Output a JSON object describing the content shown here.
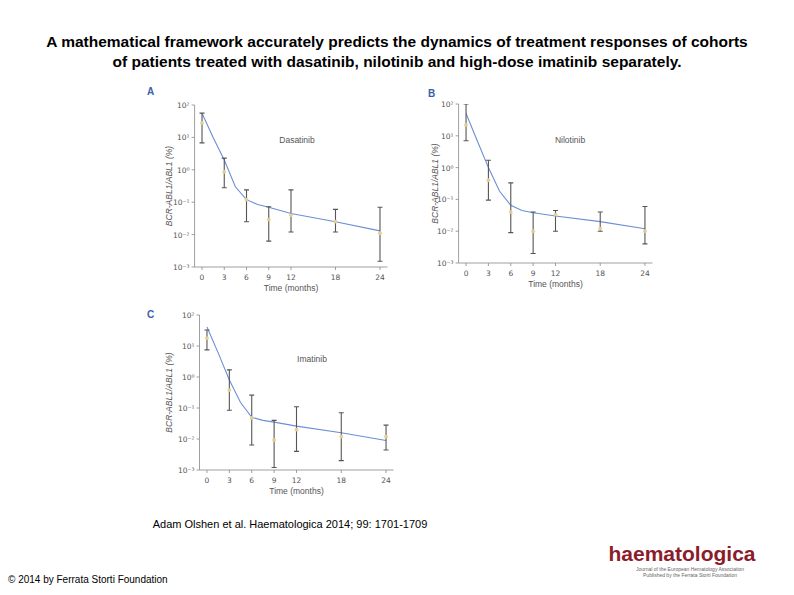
{
  "page": {
    "title": [
      "A mathematical framework accurately predicts the dynamics of treatment responses of cohorts",
      "of patients treated with dasatinib, nilotinib and high-dose imatinib separately."
    ],
    "citation": "Adam Olshen et al. Haematologica 2014; 99: 1701-1709",
    "copyright": "© 2014 by Ferrata Storti Foundation",
    "logo": {
      "name": "haematologica",
      "tagline": [
        "Journal of the European Hematology Association",
        "Published by the Ferrata Storti Foundation"
      ]
    }
  },
  "chart_data": [
    {
      "type": "scatter",
      "title": "A",
      "annotation": "Dasatinib",
      "x_label": "Time (months)",
      "y_label": "BCR-ABL1/ABL1 (%)",
      "log": "y",
      "grid": false,
      "xlim": [
        -1,
        25
      ],
      "xticks": [
        0,
        3,
        6,
        9,
        12,
        18,
        24
      ],
      "ylim": [
        0.001,
        100
      ],
      "yticks": [
        {
          "value": 100,
          "label": "10²"
        },
        {
          "value": 10,
          "label": "10¹"
        },
        {
          "value": 1,
          "label": "10⁰"
        },
        {
          "value": 0.1,
          "label": "10⁻¹"
        },
        {
          "value": 0.01,
          "label": "10⁻²"
        },
        {
          "value": 0.001,
          "label": "10⁻³"
        }
      ],
      "x": [
        0,
        3,
        6,
        9,
        12,
        18,
        24
      ],
      "series": [
        {
          "type": "line",
          "color": "#6b8fd6",
          "line_style": "solid",
          "x": [
            0,
            1.5,
            3,
            4.5,
            6,
            7.5,
            9,
            12,
            18,
            24
          ],
          "values": [
            56,
            10,
            2,
            0.3,
            0.12,
            0.085,
            0.07,
            0.045,
            0.025,
            0.013
          ]
        },
        {
          "type": "scatter",
          "color": "#e3cf94",
          "marker": "circle",
          "values": [
            28,
            0.87,
            0.12,
            0.029,
            0.04,
            0.025,
            0.011
          ],
          "lower": [
            6.8,
            0.28,
            0.025,
            0.0063,
            0.012,
            0.012,
            0.0015
          ],
          "upper": [
            56,
            2.3,
            0.24,
            0.072,
            0.24,
            0.06,
            0.07
          ]
        }
      ]
    },
    {
      "type": "scatter",
      "title": "B",
      "annotation": "Nilotinib",
      "x_label": "Time (months)",
      "y_label": "BCR-ABL1/ABL1 (%)",
      "log": "y",
      "grid": false,
      "xlim": [
        -1,
        25
      ],
      "xticks": [
        0,
        3,
        6,
        9,
        12,
        18,
        24
      ],
      "ylim": [
        0.001,
        100
      ],
      "yticks": [
        {
          "value": 100,
          "label": "10²"
        },
        {
          "value": 10,
          "label": "10¹"
        },
        {
          "value": 1,
          "label": "10⁰"
        },
        {
          "value": 0.1,
          "label": "10⁻¹"
        },
        {
          "value": 0.01,
          "label": "10⁻²"
        },
        {
          "value": 0.001,
          "label": "10⁻³"
        }
      ],
      "x": [
        0,
        3,
        6,
        9,
        12,
        18,
        24
      ],
      "series": [
        {
          "type": "line",
          "color": "#6b8fd6",
          "line_style": "solid",
          "x": [
            0,
            1.5,
            3,
            4.5,
            6,
            7.5,
            9,
            12,
            18,
            24
          ],
          "values": [
            50,
            7,
            1.0,
            0.18,
            0.065,
            0.045,
            0.038,
            0.03,
            0.02,
            0.012
          ]
        },
        {
          "type": "scatter",
          "color": "#e3cf94",
          "marker": "circle",
          "values": [
            22,
            0.4,
            0.04,
            0.01,
            0.033,
            0.012,
            0.01
          ],
          "lower": [
            7,
            0.095,
            0.009,
            0.002,
            0.01,
            0.01,
            0.004
          ],
          "upper": [
            100,
            1.7,
            0.33,
            0.04,
            0.045,
            0.04,
            0.06
          ]
        }
      ]
    },
    {
      "type": "scatter",
      "title": "C",
      "annotation": "Imatinib",
      "x_label": "Time (months)",
      "y_label": "BCR-ABL1/ABL1 (%)",
      "log": "y",
      "grid": false,
      "xlim": [
        -1,
        25
      ],
      "xticks": [
        0,
        3,
        6,
        9,
        12,
        18,
        24
      ],
      "ylim": [
        0.001,
        100
      ],
      "yticks": [
        {
          "value": 100,
          "label": "10²"
        },
        {
          "value": 10,
          "label": "10¹"
        },
        {
          "value": 1,
          "label": "10⁰"
        },
        {
          "value": 0.1,
          "label": "10⁻¹"
        },
        {
          "value": 0.01,
          "label": "10⁻²"
        },
        {
          "value": 0.001,
          "label": "10⁻³"
        }
      ],
      "x": [
        0,
        3,
        6,
        9,
        12,
        18,
        24
      ],
      "series": [
        {
          "type": "line",
          "color": "#6b8fd6",
          "line_style": "solid",
          "x": [
            0,
            1.5,
            3,
            4.5,
            6,
            7.5,
            9,
            12,
            18,
            24
          ],
          "values": [
            41,
            6,
            0.8,
            0.15,
            0.05,
            0.04,
            0.035,
            0.026,
            0.016,
            0.009
          ]
        },
        {
          "type": "scatter",
          "color": "#e3cf94",
          "marker": "circle",
          "values": [
            18,
            0.38,
            0.048,
            0.0093,
            0.02,
            0.012,
            0.012
          ],
          "lower": [
            7.5,
            0.085,
            0.0064,
            0.0012,
            0.004,
            0.002,
            0.0044
          ],
          "upper": [
            33,
            1.7,
            0.26,
            0.04,
            0.11,
            0.07,
            0.028
          ]
        }
      ]
    }
  ]
}
